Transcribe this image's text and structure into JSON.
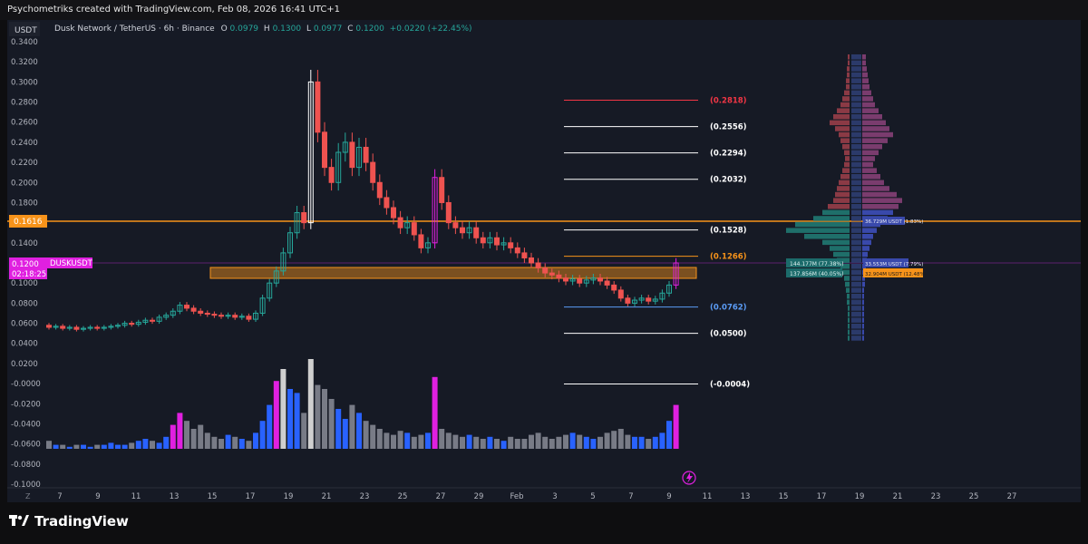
{
  "header": {
    "title": "Psychometriks created with TradingView.com, Feb 08, 2026 16:41 UTC+1"
  },
  "currency_label": "USDT",
  "symbol_info": {
    "name": "Dusk Network / TetherUS · 6h · Binance",
    "o_label": "O",
    "o_value": "0.0979",
    "h_label": "H",
    "h_value": "0.1300",
    "l_label": "L",
    "l_value": "0.0977",
    "c_label": "C",
    "c_value": "0.1200",
    "change": "+0.0220 (+22.45%)"
  },
  "price_axis": [
    "0.3400",
    "0.3200",
    "0.3000",
    "0.2800",
    "0.2600",
    "0.2400",
    "0.2200",
    "0.2000",
    "0.1800",
    "0.1400",
    "0.1000",
    "0.0800",
    "0.0600",
    "0.0400",
    "0.0200",
    "-0.0000",
    "-0.0200",
    "-0.0400",
    "-0.0600",
    "-0.0800",
    "-0.1000"
  ],
  "price_marker_level": {
    "value": "0.1616",
    "color": "#f7931a"
  },
  "last_price": {
    "value": "0.1200",
    "symbol": "DUSKUSDT",
    "countdown": "02:18:25",
    "color": "#e020e0"
  },
  "time_axis": [
    "7",
    "9",
    "11",
    "13",
    "15",
    "17",
    "19",
    "21",
    "23",
    "25",
    "27",
    "29",
    "Feb",
    "3",
    "5",
    "7",
    "9",
    "11",
    "13",
    "15",
    "17",
    "19",
    "21",
    "23",
    "25",
    "27"
  ],
  "fib_levels": [
    {
      "value": 0.2818,
      "label": "(0.2818)",
      "color": "#f23645"
    },
    {
      "value": 0.2556,
      "label": "(0.2556)",
      "color": "#ffffff"
    },
    {
      "value": 0.2294,
      "label": "(0.2294)",
      "color": "#ffffff"
    },
    {
      "value": 0.2032,
      "label": "(0.2032)",
      "color": "#ffffff"
    },
    {
      "value": 0.1528,
      "label": "(0.1528)",
      "color": "#ffffff"
    },
    {
      "value": 0.1266,
      "label": "(0.1266)",
      "color": "#f7931a"
    },
    {
      "value": 0.0762,
      "label": "(0.0762)",
      "color": "#5b9cf6"
    },
    {
      "value": 0.05,
      "label": "(0.0500)",
      "color": "#ffffff"
    },
    {
      "value": -0.0004,
      "label": "(-0.0004)",
      "color": "#ffffff"
    }
  ],
  "order_book_labels": {
    "bid_top": "144.177M (77.38%)",
    "bid_mid": "137.856M (40.05%)",
    "ask_top": "33.553M USDT (7.79%)",
    "ask_mid": "32.904M USDT (12.48%)",
    "level_mid": "36.729M USDT (1.83%)"
  },
  "colors": {
    "bull": "#26a69a",
    "bear": "#ef5350",
    "highlight": "#e020e0",
    "volume_blue": "#2962ff",
    "volume_gray": "#787b86",
    "zone": "#f7931a"
  },
  "icons": {
    "lightning": "lightning-icon",
    "logo": "tradingview-logo-icon"
  },
  "footer": {
    "brand": "TradingView",
    "axis_corner": "Z"
  }
}
